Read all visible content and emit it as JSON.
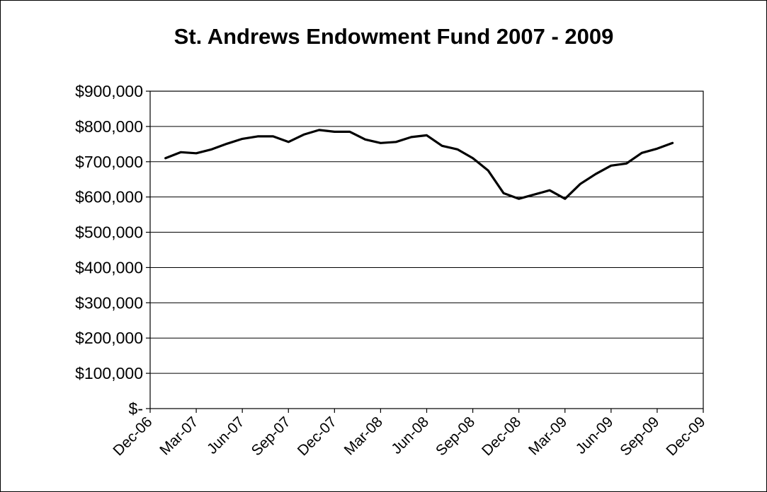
{
  "chart_data": {
    "type": "line",
    "title": "St. Andrews Endowment Fund 2007 - 2009",
    "xlabel": "",
    "ylabel": "",
    "x_axis": {
      "type": "date",
      "range": [
        "2006-12",
        "2009-12"
      ],
      "tick_dates": [
        "2006-12",
        "2007-03",
        "2007-06",
        "2007-09",
        "2007-12",
        "2008-03",
        "2008-06",
        "2008-09",
        "2008-12",
        "2009-03",
        "2009-06",
        "2009-09",
        "2009-12"
      ],
      "tick_labels": [
        "Dec-06",
        "Mar-07",
        "Jun-07",
        "Sep-07",
        "Dec-07",
        "Mar-08",
        "Jun-08",
        "Sep-08",
        "Dec-08",
        "Mar-09",
        "Jun-09",
        "Sep-09",
        "Dec-09"
      ]
    },
    "y_axis": {
      "range": [
        0,
        900000
      ],
      "tick_values": [
        0,
        100000,
        200000,
        300000,
        400000,
        500000,
        600000,
        700000,
        800000,
        900000
      ],
      "tick_labels": [
        "$-",
        "$100,000",
        "$200,000",
        "$300,000",
        "$400,000",
        "$500,000",
        "$600,000",
        "$700,000",
        "$800,000",
        "$900,000"
      ]
    },
    "grid": true,
    "legend": "none",
    "series": [
      {
        "color": "#000000",
        "points": [
          {
            "x": "2007-01",
            "y": 710000
          },
          {
            "x": "2007-02",
            "y": 727000
          },
          {
            "x": "2007-03",
            "y": 724000
          },
          {
            "x": "2007-04",
            "y": 735000
          },
          {
            "x": "2007-05",
            "y": 751000
          },
          {
            "x": "2007-06",
            "y": 765000
          },
          {
            "x": "2007-07",
            "y": 772000
          },
          {
            "x": "2007-08",
            "y": 772000
          },
          {
            "x": "2007-09",
            "y": 756000
          },
          {
            "x": "2007-10",
            "y": 777000
          },
          {
            "x": "2007-11",
            "y": 790000
          },
          {
            "x": "2007-12",
            "y": 785000
          },
          {
            "x": "2008-01",
            "y": 785000
          },
          {
            "x": "2008-02",
            "y": 763000
          },
          {
            "x": "2008-03",
            "y": 753000
          },
          {
            "x": "2008-04",
            "y": 756000
          },
          {
            "x": "2008-05",
            "y": 770000
          },
          {
            "x": "2008-06",
            "y": 775000
          },
          {
            "x": "2008-07",
            "y": 745000
          },
          {
            "x": "2008-08",
            "y": 735000
          },
          {
            "x": "2008-09",
            "y": 710000
          },
          {
            "x": "2008-10",
            "y": 675000
          },
          {
            "x": "2008-11",
            "y": 611000
          },
          {
            "x": "2008-12",
            "y": 595000
          },
          {
            "x": "2009-01",
            "y": 607000
          },
          {
            "x": "2009-02",
            "y": 619000
          },
          {
            "x": "2009-03",
            "y": 595000
          },
          {
            "x": "2009-04",
            "y": 637000
          },
          {
            "x": "2009-05",
            "y": 665000
          },
          {
            "x": "2009-06",
            "y": 689000
          },
          {
            "x": "2009-07",
            "y": 695000
          },
          {
            "x": "2009-08",
            "y": 725000
          },
          {
            "x": "2009-09",
            "y": 737000
          },
          {
            "x": "2009-10",
            "y": 753000
          }
        ]
      }
    ]
  }
}
